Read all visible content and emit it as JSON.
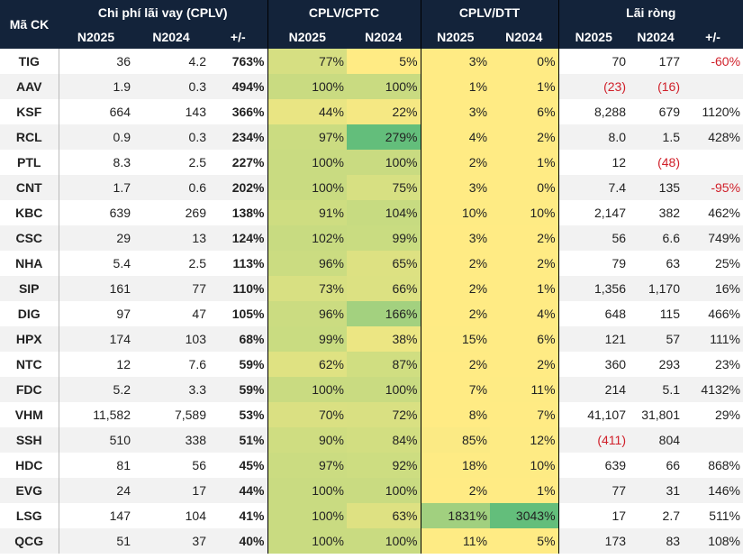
{
  "header": {
    "ticker": "Mã CK",
    "groups": [
      "Chi phí lãi vay (CPLV)",
      "CPLV/CPTC",
      "CPLV/DTT",
      "Lãi ròng"
    ],
    "sub": [
      "N2025",
      "N2024",
      "+/-",
      "N2025",
      "N2024",
      "N2025",
      "N2024",
      "N2025",
      "N2024",
      "+/-"
    ]
  },
  "colors": {
    "header": "#13233a",
    "scale_low": "#ffeb84",
    "scale_high": "#63be7b",
    "negative": "#d0202a"
  },
  "rows": [
    {
      "tk": "TIG",
      "c25": "36",
      "c24": "4.2",
      "cd": "763%",
      "t25": "77%",
      "t24": "5%",
      "d25": "3%",
      "d24": "0%",
      "l25": "70",
      "l24": "177",
      "ld": "-60%"
    },
    {
      "tk": "AAV",
      "c25": "1.9",
      "c24": "0.3",
      "cd": "494%",
      "t25": "100%",
      "t24": "100%",
      "d25": "1%",
      "d24": "1%",
      "l25": "(23)",
      "l24": "(16)",
      "ld": ""
    },
    {
      "tk": "KSF",
      "c25": "664",
      "c24": "143",
      "cd": "366%",
      "t25": "44%",
      "t24": "22%",
      "d25": "3%",
      "d24": "6%",
      "l25": "8,288",
      "l24": "679",
      "ld": "1120%"
    },
    {
      "tk": "RCL",
      "c25": "0.9",
      "c24": "0.3",
      "cd": "234%",
      "t25": "97%",
      "t24": "279%",
      "d25": "4%",
      "d24": "2%",
      "l25": "8.0",
      "l24": "1.5",
      "ld": "428%"
    },
    {
      "tk": "PTL",
      "c25": "8.3",
      "c24": "2.5",
      "cd": "227%",
      "t25": "100%",
      "t24": "100%",
      "d25": "2%",
      "d24": "1%",
      "l25": "12",
      "l24": "(48)",
      "ld": ""
    },
    {
      "tk": "CNT",
      "c25": "1.7",
      "c24": "0.6",
      "cd": "202%",
      "t25": "100%",
      "t24": "75%",
      "d25": "3%",
      "d24": "0%",
      "l25": "7.4",
      "l24": "135",
      "ld": "-95%"
    },
    {
      "tk": "KBC",
      "c25": "639",
      "c24": "269",
      "cd": "138%",
      "t25": "91%",
      "t24": "104%",
      "d25": "10%",
      "d24": "10%",
      "l25": "2,147",
      "l24": "382",
      "ld": "462%"
    },
    {
      "tk": "CSC",
      "c25": "29",
      "c24": "13",
      "cd": "124%",
      "t25": "102%",
      "t24": "99%",
      "d25": "3%",
      "d24": "2%",
      "l25": "56",
      "l24": "6.6",
      "ld": "749%"
    },
    {
      "tk": "NHA",
      "c25": "5.4",
      "c24": "2.5",
      "cd": "113%",
      "t25": "96%",
      "t24": "65%",
      "d25": "2%",
      "d24": "2%",
      "l25": "79",
      "l24": "63",
      "ld": "25%"
    },
    {
      "tk": "SIP",
      "c25": "161",
      "c24": "77",
      "cd": "110%",
      "t25": "73%",
      "t24": "66%",
      "d25": "2%",
      "d24": "1%",
      "l25": "1,356",
      "l24": "1,170",
      "ld": "16%"
    },
    {
      "tk": "DIG",
      "c25": "97",
      "c24": "47",
      "cd": "105%",
      "t25": "96%",
      "t24": "166%",
      "d25": "2%",
      "d24": "4%",
      "l25": "648",
      "l24": "115",
      "ld": "466%"
    },
    {
      "tk": "HPX",
      "c25": "174",
      "c24": "103",
      "cd": "68%",
      "t25": "99%",
      "t24": "38%",
      "d25": "15%",
      "d24": "6%",
      "l25": "121",
      "l24": "57",
      "ld": "111%"
    },
    {
      "tk": "NTC",
      "c25": "12",
      "c24": "7.6",
      "cd": "59%",
      "t25": "62%",
      "t24": "87%",
      "d25": "2%",
      "d24": "2%",
      "l25": "360",
      "l24": "293",
      "ld": "23%"
    },
    {
      "tk": "FDC",
      "c25": "5.2",
      "c24": "3.3",
      "cd": "59%",
      "t25": "100%",
      "t24": "100%",
      "d25": "7%",
      "d24": "11%",
      "l25": "214",
      "l24": "5.1",
      "ld": "4132%"
    },
    {
      "tk": "VHM",
      "c25": "11,582",
      "c24": "7,589",
      "cd": "53%",
      "t25": "70%",
      "t24": "72%",
      "d25": "8%",
      "d24": "7%",
      "l25": "41,107",
      "l24": "31,801",
      "ld": "29%"
    },
    {
      "tk": "SSH",
      "c25": "510",
      "c24": "338",
      "cd": "51%",
      "t25": "90%",
      "t24": "84%",
      "d25": "85%",
      "d24": "12%",
      "l25": "(411)",
      "l24": "804",
      "ld": ""
    },
    {
      "tk": "HDC",
      "c25": "81",
      "c24": "56",
      "cd": "45%",
      "t25": "97%",
      "t24": "92%",
      "d25": "18%",
      "d24": "10%",
      "l25": "639",
      "l24": "66",
      "ld": "868%"
    },
    {
      "tk": "EVG",
      "c25": "24",
      "c24": "17",
      "cd": "44%",
      "t25": "100%",
      "t24": "100%",
      "d25": "2%",
      "d24": "1%",
      "l25": "77",
      "l24": "31",
      "ld": "146%"
    },
    {
      "tk": "LSG",
      "c25": "147",
      "c24": "104",
      "cd": "41%",
      "t25": "100%",
      "t24": "63%",
      "d25": "1831%",
      "d24": "3043%",
      "l25": "17",
      "l24": "2.7",
      "ld": "511%"
    },
    {
      "tk": "QCG",
      "c25": "51",
      "c24": "37",
      "cd": "40%",
      "t25": "100%",
      "t24": "100%",
      "d25": "11%",
      "d24": "5%",
      "l25": "173",
      "l24": "83",
      "ld": "108%"
    }
  ]
}
